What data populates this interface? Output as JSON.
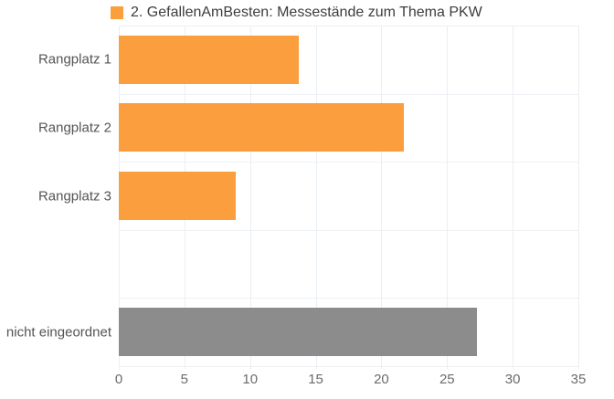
{
  "legend": {
    "label": "2. GefallenAmBesten: Messestände zum Thema PKW",
    "color": "#FA9E3E"
  },
  "colors": {
    "bar_orange": "#FA9E3E",
    "bar_gray": "#8C8C8C",
    "gridline": "#e9eef3",
    "axis_text": "#6b6b6b",
    "category_text": "#555555",
    "legend_text": "#3d3d3d"
  },
  "chart_data": {
    "type": "bar",
    "orientation": "horizontal",
    "title": "",
    "series_name": "2. GefallenAmBesten: Messestände zum Thema PKW",
    "categories": [
      "Rangplatz 1",
      "Rangplatz 2",
      "Rangplatz 3",
      "",
      "nicht eingeordnet"
    ],
    "values": [
      13.7,
      21.7,
      8.9,
      null,
      27.3
    ],
    "bar_colors": [
      "#FA9E3E",
      "#FA9E3E",
      "#FA9E3E",
      null,
      "#8C8C8C"
    ],
    "xlabel": "",
    "ylabel": "",
    "xlim": [
      0,
      35
    ],
    "x_ticks": [
      0,
      5,
      10,
      15,
      20,
      25,
      30,
      35
    ],
    "grid": true,
    "legend_position": "top"
  }
}
